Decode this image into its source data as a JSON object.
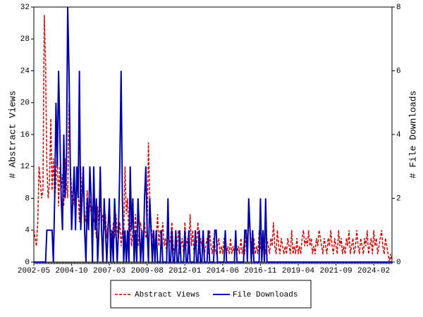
{
  "chart_data": {
    "type": "line",
    "y_label": "# Abstract Views",
    "y2_label": "# File Downloads",
    "categories": [
      "2002-05",
      null,
      null,
      null,
      null,
      null,
      null,
      null,
      null,
      null,
      null,
      null,
      null,
      null,
      null,
      null,
      null,
      null,
      null,
      null,
      null,
      null,
      null,
      null,
      null,
      null,
      null,
      null,
      null,
      "2004-10",
      null,
      null,
      null,
      null,
      null,
      null,
      null,
      null,
      null,
      null,
      null,
      null,
      null,
      null,
      null,
      null,
      null,
      null,
      null,
      null,
      null,
      null,
      null,
      null,
      null,
      null,
      null,
      null,
      "2007-03",
      null,
      null,
      null,
      null,
      null,
      null,
      null,
      null,
      null,
      null,
      null,
      null,
      null,
      null,
      null,
      null,
      null,
      null,
      null,
      null,
      null,
      null,
      null,
      null,
      null,
      null,
      null,
      null,
      "2009-08",
      null,
      null,
      null,
      null,
      null,
      null,
      null,
      null,
      null,
      null,
      null,
      null,
      null,
      null,
      null,
      null,
      null,
      null,
      null,
      null,
      null,
      null,
      null,
      null,
      null,
      null,
      null,
      null,
      "2012-01",
      null,
      null,
      null,
      null,
      null,
      null,
      null,
      null,
      null,
      null,
      null,
      null,
      null,
      null,
      null,
      null,
      null,
      null,
      null,
      null,
      null,
      null,
      null,
      null,
      null,
      null,
      null,
      null,
      "2014-06",
      null,
      null,
      null,
      null,
      null,
      null,
      null,
      null,
      null,
      null,
      null,
      null,
      null,
      null,
      null,
      null,
      null,
      null,
      null,
      null,
      null,
      null,
      null,
      null,
      null,
      null,
      null,
      null,
      "2016-11",
      null,
      null,
      null,
      null,
      null,
      null,
      null,
      null,
      null,
      null,
      null,
      null,
      null,
      null,
      null,
      null,
      null,
      null,
      null,
      null,
      null,
      null,
      null,
      null,
      null,
      null,
      null,
      null,
      "2019-04",
      null,
      null,
      null,
      null,
      null,
      null,
      null,
      null,
      null,
      null,
      null,
      null,
      null,
      null,
      null,
      null,
      null,
      null,
      null,
      null,
      null,
      null,
      null,
      null,
      null,
      null,
      null,
      null,
      "2021-09",
      null,
      null,
      null,
      null,
      null,
      null,
      null,
      null,
      null,
      null,
      null,
      null,
      null,
      null,
      null,
      null,
      null,
      null,
      null,
      null,
      null,
      null,
      null,
      null,
      null,
      null,
      null,
      null,
      "2024-02",
      null,
      null,
      null,
      null,
      null,
      null,
      null,
      null,
      null,
      null,
      null,
      null,
      null,
      null
    ],
    "series": [
      {
        "name": "Abstract Views",
        "color": "#cc0000",
        "dashed": true,
        "values": [
          4,
          3,
          2,
          5,
          12,
          10,
          8,
          9,
          31,
          25,
          12,
          8,
          10,
          18,
          9,
          13,
          8,
          10,
          14,
          7,
          12,
          9,
          11,
          7,
          13,
          10,
          8,
          20,
          12,
          9,
          7,
          8,
          6,
          10,
          9,
          5,
          12,
          7,
          11,
          6,
          5,
          9,
          4,
          8,
          6,
          7,
          5,
          6,
          3,
          7,
          4,
          8,
          5,
          6,
          4,
          6,
          3,
          5,
          7,
          4,
          2,
          5,
          3,
          6,
          4,
          3,
          5,
          2,
          4,
          3,
          12,
          6,
          8,
          3,
          5,
          2,
          4,
          3,
          6,
          3,
          2,
          4,
          5,
          3,
          2,
          5,
          3,
          4,
          15,
          8,
          5,
          3,
          4,
          2,
          3,
          6,
          2,
          4,
          3,
          5,
          2,
          3,
          1,
          4,
          2,
          3,
          5,
          2,
          1,
          3,
          2,
          4,
          1,
          2,
          3,
          1,
          5,
          2,
          3,
          1,
          6,
          2,
          4,
          1,
          3,
          2,
          5,
          1,
          3,
          2,
          4,
          1,
          2,
          3,
          1,
          4,
          2,
          1,
          3,
          2,
          1,
          2,
          3,
          1,
          2,
          1,
          3,
          2,
          1,
          2,
          1,
          3,
          1,
          2,
          1,
          2,
          1,
          2,
          1,
          3,
          1,
          2,
          1,
          4,
          2,
          5,
          4,
          2,
          1,
          3,
          1,
          2,
          1,
          4,
          2,
          1,
          3,
          2,
          1,
          3,
          2,
          1,
          3,
          2,
          5,
          2,
          1,
          4,
          2,
          1,
          3,
          2,
          1,
          2,
          1,
          3,
          2,
          1,
          4,
          1,
          2,
          1,
          3,
          1,
          2,
          1,
          3,
          4,
          2,
          3,
          2,
          4,
          2,
          3,
          1,
          2,
          1,
          3,
          2,
          4,
          3,
          2,
          1,
          3,
          2,
          1,
          3,
          2,
          4,
          2,
          1,
          3,
          2,
          1,
          4,
          2,
          3,
          1,
          2,
          1,
          3,
          2,
          4,
          1,
          2,
          3,
          1,
          2,
          4,
          2,
          1,
          3,
          2,
          1,
          3,
          2,
          4,
          1,
          2,
          3,
          1,
          4,
          2,
          3,
          1,
          2,
          3,
          4,
          2,
          1,
          3,
          2,
          1,
          0,
          1,
          0
        ]
      },
      {
        "name": "File Downloads",
        "color": "#0000aa",
        "axis": "y2",
        "values": [
          0,
          0,
          0,
          0,
          0,
          0,
          0,
          0,
          0,
          0,
          1,
          1,
          1,
          1,
          1,
          0,
          2,
          5,
          3,
          6,
          4,
          2,
          1,
          4,
          2,
          3,
          8,
          6,
          3,
          1,
          2,
          3,
          1,
          3,
          2,
          6,
          1,
          2,
          3,
          1,
          0,
          2,
          1,
          3,
          2,
          0,
          3,
          1,
          2,
          0,
          1,
          3,
          1,
          0,
          2,
          1,
          0,
          1,
          2,
          0,
          1,
          0,
          2,
          1,
          0,
          1,
          3,
          6,
          2,
          0,
          1,
          0,
          1,
          0,
          3,
          1,
          2,
          0,
          1,
          0,
          2,
          1,
          0,
          1,
          0,
          2,
          3,
          1,
          0,
          2,
          1,
          0,
          1,
          0,
          1,
          0,
          0,
          0,
          1,
          0,
          0,
          0,
          0,
          2,
          0,
          0,
          1,
          0,
          0,
          1,
          0,
          0,
          1,
          0,
          0,
          0,
          1,
          0,
          0,
          1,
          0,
          0,
          0,
          0,
          1,
          0,
          0,
          1,
          0,
          0,
          1,
          0,
          0,
          0,
          1,
          0,
          0,
          0,
          0,
          1,
          1,
          0,
          0,
          0,
          0,
          0,
          0,
          1,
          0,
          0,
          0,
          0,
          0,
          0,
          0,
          1,
          0,
          0,
          0,
          0,
          0,
          0,
          1,
          1,
          0,
          2,
          1,
          0,
          1,
          0,
          0,
          0,
          0,
          0,
          2,
          0,
          1,
          0,
          2,
          0,
          0,
          0,
          0,
          0,
          0,
          0,
          0,
          0,
          0,
          0,
          0,
          0,
          0,
          0,
          0,
          0,
          0,
          0,
          0,
          0,
          0,
          0,
          0,
          0,
          0,
          0,
          0,
          0,
          0,
          0,
          0,
          0,
          0,
          0,
          0,
          0,
          0,
          0,
          0,
          0,
          0,
          0,
          0,
          0,
          0,
          0,
          0,
          0,
          0,
          0,
          0,
          0,
          0,
          0,
          0,
          0,
          0,
          0,
          0,
          0,
          0,
          0,
          0,
          0,
          0,
          0,
          0,
          0,
          0,
          0,
          0,
          0,
          0,
          0,
          0,
          0,
          0,
          0,
          0,
          0,
          0,
          0,
          0,
          0,
          0,
          0,
          0,
          0,
          0,
          0,
          0,
          0,
          0,
          0,
          0,
          0
        ]
      }
    ],
    "ylim": [
      0,
      32
    ],
    "yticks": [
      0,
      4,
      8,
      12,
      16,
      20,
      24,
      28,
      32
    ],
    "y2lim": [
      0,
      8
    ],
    "y2ticks": [
      0,
      2,
      4,
      6,
      8
    ]
  }
}
